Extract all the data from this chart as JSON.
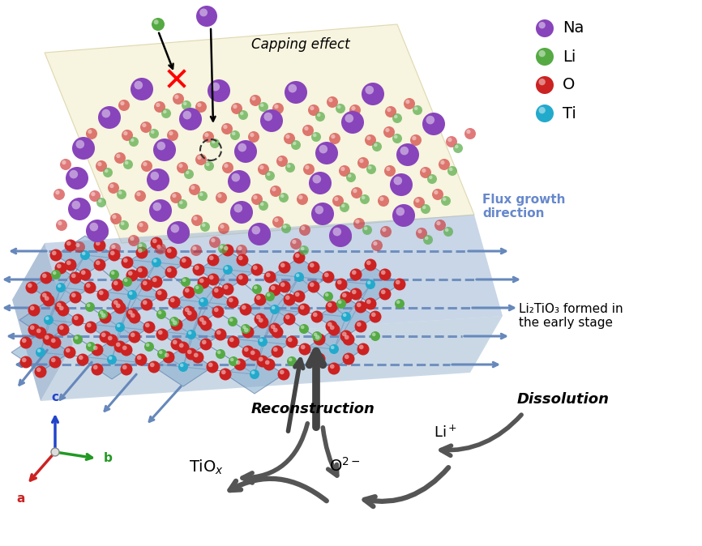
{
  "legend_items": [
    {
      "label": "Na",
      "color": "#8844BB"
    },
    {
      "label": "Li",
      "color": "#55AA44"
    },
    {
      "label": "O",
      "color": "#CC2222"
    },
    {
      "label": "Ti",
      "color": "#22AACC"
    }
  ],
  "flux_growth_text": "Flux growth\ndirection",
  "flux_growth_color": "#6688CC",
  "capping_text": "Capping effect",
  "reconstruction_text": "Reconstruction",
  "dissolution_text": "Dissolution",
  "li2tio3_text": "Li₂TiO₃ formed in\nthe early stage",
  "bg_color": "#FFFFFF",
  "arrow_color": "#555555",
  "dashed_arrow_color": "#6688BB"
}
